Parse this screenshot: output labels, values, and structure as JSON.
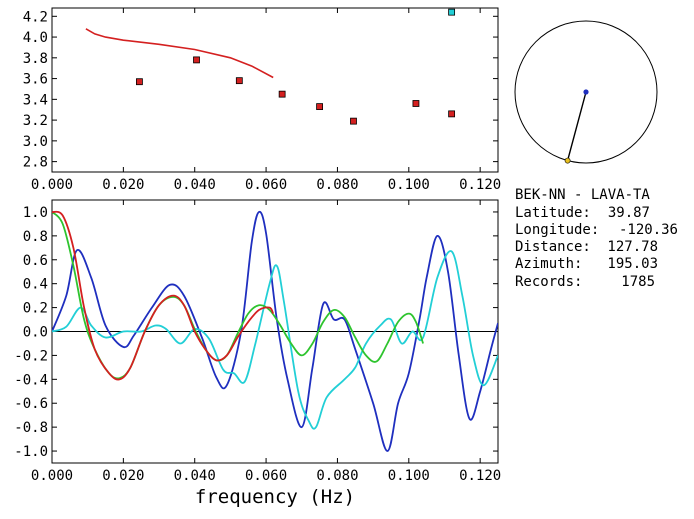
{
  "chart_data": [
    {
      "type": "scatter",
      "xlim": [
        0,
        0.125
      ],
      "ylim": [
        2.7,
        4.28
      ],
      "x_ticks": [
        "0.000",
        "0.020",
        "0.040",
        "0.060",
        "0.080",
        "0.100",
        "0.120"
      ],
      "y_ticks": [
        "2.8",
        "3.0",
        "3.2",
        "3.4",
        "3.6",
        "3.8",
        "4.0",
        "4.2"
      ],
      "grid": false,
      "line": {
        "color": "#d42020",
        "points": [
          [
            0.0095,
            4.08
          ],
          [
            0.012,
            4.03
          ],
          [
            0.015,
            4.0
          ],
          [
            0.02,
            3.97
          ],
          [
            0.03,
            3.93
          ],
          [
            0.04,
            3.88
          ],
          [
            0.05,
            3.8
          ],
          [
            0.056,
            3.72
          ],
          [
            0.062,
            3.61
          ]
        ]
      },
      "points": [
        {
          "x": 0.0245,
          "y": 3.57,
          "color": "#d42020"
        },
        {
          "x": 0.0405,
          "y": 3.78,
          "color": "#d42020"
        },
        {
          "x": 0.0525,
          "y": 3.58,
          "color": "#d42020"
        },
        {
          "x": 0.0645,
          "y": 3.45,
          "color": "#d42020"
        },
        {
          "x": 0.075,
          "y": 3.33,
          "color": "#d42020"
        },
        {
          "x": 0.0845,
          "y": 3.19,
          "color": "#d42020"
        },
        {
          "x": 0.102,
          "y": 3.36,
          "color": "#d42020"
        },
        {
          "x": 0.112,
          "y": 3.26,
          "color": "#d42020"
        },
        {
          "x": 0.112,
          "y": 4.24,
          "color": "#22cfd6"
        }
      ]
    },
    {
      "type": "line",
      "xlabel": "frequency (Hz)",
      "xlim": [
        0,
        0.125
      ],
      "ylim": [
        -1.1,
        1.1
      ],
      "x_ticks": [
        "0.000",
        "0.020",
        "0.040",
        "0.060",
        "0.080",
        "0.100",
        "0.120"
      ],
      "y_ticks": [
        "1.0",
        "0.8",
        "0.6",
        "0.4",
        "0.2",
        "0.0",
        "-0.2",
        "-0.4",
        "-0.6",
        "-0.8",
        "-1.0"
      ],
      "grid": false,
      "zero_line": true,
      "series": [
        {
          "color": "#1f2fbf",
          "points": [
            [
              0.0,
              0.0
            ],
            [
              0.004,
              0.3
            ],
            [
              0.007,
              0.68
            ],
            [
              0.011,
              0.45
            ],
            [
              0.015,
              0.05
            ],
            [
              0.02,
              -0.13
            ],
            [
              0.023,
              -0.03
            ],
            [
              0.028,
              0.2
            ],
            [
              0.033,
              0.39
            ],
            [
              0.037,
              0.3
            ],
            [
              0.042,
              -0.05
            ],
            [
              0.046,
              -0.38
            ],
            [
              0.049,
              -0.45
            ],
            [
              0.053,
              0.0
            ],
            [
              0.056,
              0.75
            ],
            [
              0.058,
              1.0
            ],
            [
              0.06,
              0.82
            ],
            [
              0.063,
              0.1
            ],
            [
              0.066,
              -0.4
            ],
            [
              0.07,
              -0.8
            ],
            [
              0.073,
              -0.3
            ],
            [
              0.076,
              0.23
            ],
            [
              0.079,
              0.1
            ],
            [
              0.082,
              0.1
            ],
            [
              0.085,
              -0.15
            ],
            [
              0.09,
              -0.6
            ],
            [
              0.094,
              -1.0
            ],
            [
              0.097,
              -0.6
            ],
            [
              0.1,
              -0.35
            ],
            [
              0.103,
              0.1
            ],
            [
              0.105,
              0.45
            ],
            [
              0.108,
              0.8
            ],
            [
              0.111,
              0.5
            ],
            [
              0.114,
              -0.2
            ],
            [
              0.117,
              -0.73
            ],
            [
              0.12,
              -0.5
            ],
            [
              0.123,
              -0.15
            ],
            [
              0.125,
              0.07
            ]
          ]
        },
        {
          "color": "#22cfd6",
          "points": [
            [
              0.0,
              0.0
            ],
            [
              0.004,
              0.04
            ],
            [
              0.008,
              0.2
            ],
            [
              0.011,
              0.05
            ],
            [
              0.015,
              -0.05
            ],
            [
              0.02,
              0.0
            ],
            [
              0.025,
              0.0
            ],
            [
              0.029,
              0.05
            ],
            [
              0.032,
              0.02
            ],
            [
              0.036,
              -0.1
            ],
            [
              0.04,
              0.02
            ],
            [
              0.044,
              -0.06
            ],
            [
              0.048,
              -0.32
            ],
            [
              0.051,
              -0.35
            ],
            [
              0.054,
              -0.42
            ],
            [
              0.057,
              -0.1
            ],
            [
              0.061,
              0.4
            ],
            [
              0.063,
              0.55
            ],
            [
              0.065,
              0.25
            ],
            [
              0.069,
              -0.5
            ],
            [
              0.072,
              -0.75
            ],
            [
              0.074,
              -0.8
            ],
            [
              0.077,
              -0.55
            ],
            [
              0.082,
              -0.4
            ],
            [
              0.085,
              -0.3
            ],
            [
              0.088,
              -0.1
            ],
            [
              0.092,
              0.05
            ],
            [
              0.095,
              0.1
            ],
            [
              0.098,
              -0.1
            ],
            [
              0.101,
              0.0
            ],
            [
              0.104,
              -0.05
            ],
            [
              0.108,
              0.45
            ],
            [
              0.112,
              0.67
            ],
            [
              0.115,
              0.3
            ],
            [
              0.118,
              -0.2
            ],
            [
              0.121,
              -0.45
            ],
            [
              0.125,
              -0.2
            ]
          ]
        },
        {
          "color": "#2ec42e",
          "points": [
            [
              0.0,
              1.0
            ],
            [
              0.003,
              0.9
            ],
            [
              0.006,
              0.55
            ],
            [
              0.009,
              0.1
            ],
            [
              0.012,
              -0.15
            ],
            [
              0.016,
              -0.35
            ],
            [
              0.019,
              -0.39
            ],
            [
              0.022,
              -0.3
            ],
            [
              0.026,
              0.0
            ],
            [
              0.03,
              0.22
            ],
            [
              0.034,
              0.29
            ],
            [
              0.037,
              0.22
            ],
            [
              0.04,
              0.02
            ],
            [
              0.043,
              -0.15
            ],
            [
              0.046,
              -0.24
            ],
            [
              0.049,
              -0.2
            ],
            [
              0.052,
              -0.02
            ],
            [
              0.055,
              0.15
            ],
            [
              0.058,
              0.22
            ],
            [
              0.061,
              0.18
            ],
            [
              0.064,
              0.05
            ],
            [
              0.067,
              -0.1
            ],
            [
              0.07,
              -0.2
            ],
            [
              0.073,
              -0.1
            ],
            [
              0.076,
              0.08
            ],
            [
              0.079,
              0.18
            ],
            [
              0.082,
              0.12
            ],
            [
              0.085,
              -0.05
            ],
            [
              0.088,
              -0.2
            ],
            [
              0.091,
              -0.25
            ],
            [
              0.094,
              -0.1
            ],
            [
              0.097,
              0.08
            ],
            [
              0.1,
              0.15
            ],
            [
              0.102,
              0.08
            ],
            [
              0.104,
              -0.1
            ]
          ]
        },
        {
          "color": "#d42020",
          "points": [
            [
              0.0,
              1.0
            ],
            [
              0.003,
              0.97
            ],
            [
              0.006,
              0.7
            ],
            [
              0.009,
              0.2
            ],
            [
              0.012,
              -0.15
            ],
            [
              0.016,
              -0.35
            ],
            [
              0.019,
              -0.4
            ],
            [
              0.022,
              -0.3
            ],
            [
              0.026,
              0.0
            ],
            [
              0.03,
              0.22
            ],
            [
              0.034,
              0.3
            ],
            [
              0.037,
              0.22
            ],
            [
              0.04,
              0.0
            ],
            [
              0.043,
              -0.15
            ],
            [
              0.046,
              -0.24
            ],
            [
              0.049,
              -0.2
            ],
            [
              0.052,
              -0.05
            ],
            [
              0.055,
              0.08
            ],
            [
              0.058,
              0.18
            ],
            [
              0.061,
              0.2
            ],
            [
              0.062,
              0.15
            ]
          ]
        }
      ]
    }
  ],
  "map": {
    "station_dot_color": "#1f2fbf",
    "event_dot_color": "#e8c020",
    "azimuth_deg": 195.03
  },
  "info": {
    "title": "BEK-NN - LAVA-TA",
    "rows": [
      {
        "label": "Latitude:",
        "value": "39.87"
      },
      {
        "label": "Longitude:",
        "value": "-120.36"
      },
      {
        "label": "Distance:",
        "value": "127.78"
      },
      {
        "label": "Azimuth:",
        "value": "195.03"
      },
      {
        "label": "Records:",
        "value": "1785"
      }
    ]
  }
}
